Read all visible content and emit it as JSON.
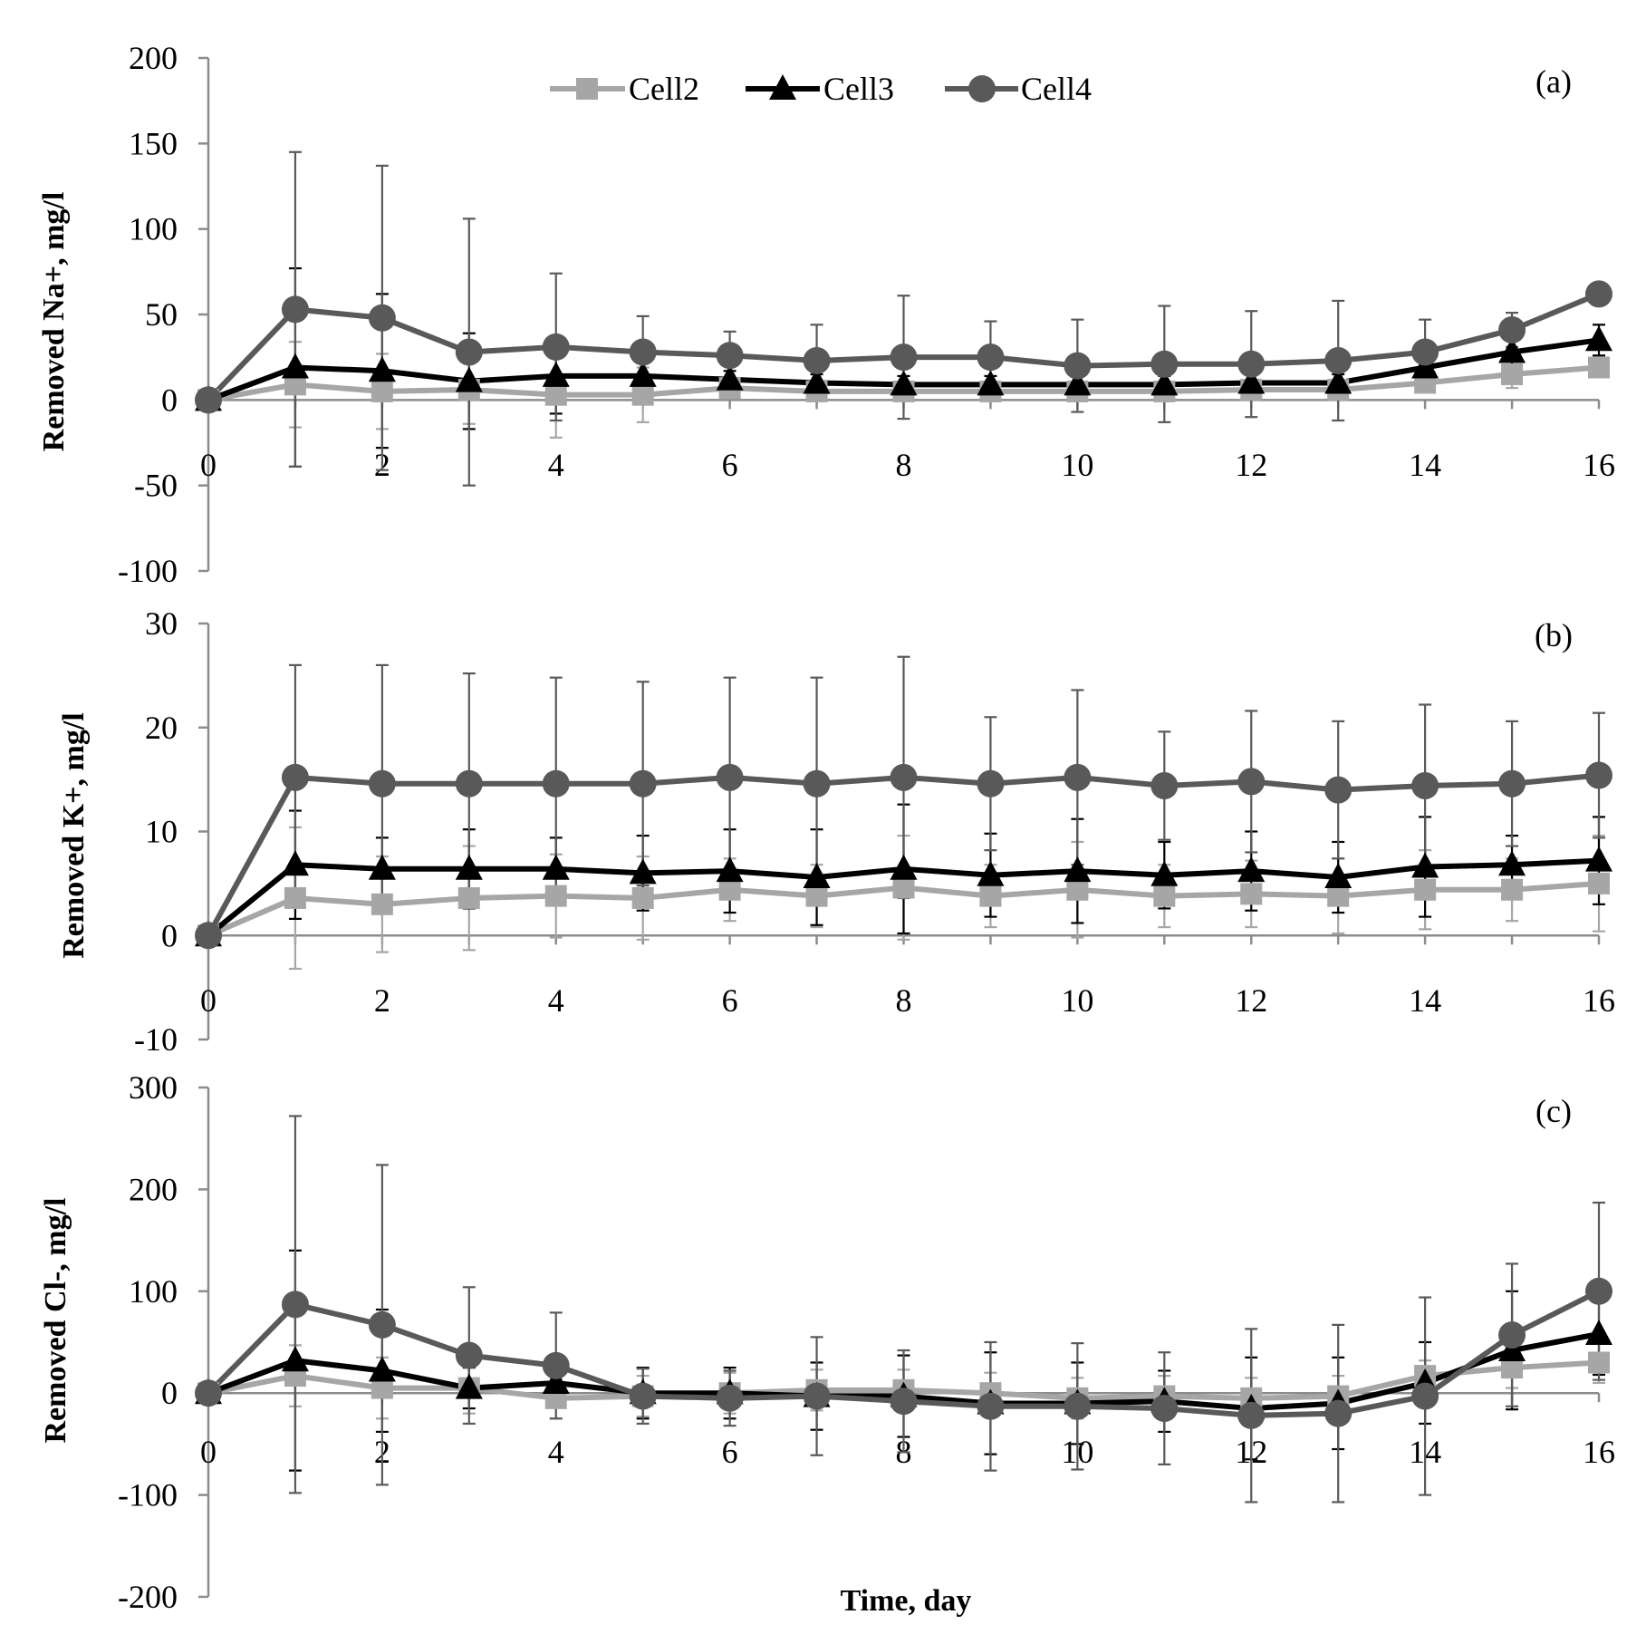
{
  "chart_data": [
    {
      "type": "line",
      "panel_label": "(a)",
      "ylabel": "Removed Na+, mg/l",
      "ylim": [
        -100,
        200
      ],
      "yticks": [
        "-100",
        "-50",
        "0",
        "50",
        "100",
        "150",
        "200"
      ],
      "ytick_values": [
        -100,
        -50,
        0,
        50,
        100,
        150,
        200
      ],
      "x": [
        0,
        1,
        2,
        3,
        4,
        5,
        6,
        7,
        8,
        9,
        10,
        11,
        12,
        13,
        14,
        15,
        16
      ],
      "xlim": [
        0,
        16
      ],
      "xticks": [
        "0",
        "2",
        "4",
        "6",
        "8",
        "10",
        "12",
        "14",
        "16"
      ],
      "xtick_values": [
        0,
        2,
        4,
        6,
        8,
        10,
        12,
        14,
        16
      ],
      "series": [
        {
          "name": "Cell2",
          "color": "#a6a6a6",
          "marker": "square",
          "values": [
            0,
            9,
            5,
            6,
            3,
            3,
            7,
            5,
            5,
            5,
            5,
            5,
            6,
            6,
            10,
            15,
            19
          ],
          "errors": [
            0,
            25,
            22,
            20,
            25,
            16,
            5,
            5,
            5,
            5,
            5,
            5,
            5,
            5,
            5,
            8,
            5
          ]
        },
        {
          "name": "Cell3",
          "color": "#000000",
          "marker": "triangle",
          "values": [
            0,
            19,
            17,
            11,
            14,
            14,
            12,
            10,
            9,
            9,
            9,
            9,
            10,
            10,
            19,
            28,
            35
          ],
          "errors": [
            0,
            58,
            45,
            28,
            22,
            8,
            5,
            5,
            5,
            5,
            5,
            5,
            5,
            5,
            5,
            8,
            9
          ]
        },
        {
          "name": "Cell4",
          "color": "#595959",
          "marker": "circle",
          "values": [
            0,
            53,
            48,
            28,
            31,
            28,
            26,
            23,
            25,
            25,
            20,
            21,
            21,
            23,
            28,
            41,
            62
          ],
          "errors": [
            0,
            92,
            89,
            78,
            43,
            21,
            14,
            21,
            36,
            21,
            27,
            34,
            31,
            35,
            19,
            10,
            0
          ]
        }
      ]
    },
    {
      "type": "line",
      "panel_label": "(b)",
      "ylabel": "Removed K+, mg/l",
      "ylim": [
        -10,
        30
      ],
      "yticks": [
        "-10",
        "0",
        "10",
        "20",
        "30"
      ],
      "ytick_values": [
        -10,
        0,
        10,
        20,
        30
      ],
      "x": [
        0,
        1,
        2,
        3,
        4,
        5,
        6,
        7,
        8,
        9,
        10,
        11,
        12,
        13,
        14,
        15,
        16
      ],
      "xlim": [
        0,
        16
      ],
      "xticks": [
        "0",
        "2",
        "4",
        "6",
        "8",
        "10",
        "12",
        "14",
        "16"
      ],
      "xtick_values": [
        0,
        2,
        4,
        6,
        8,
        10,
        12,
        14,
        16
      ],
      "series": [
        {
          "name": "Cell2",
          "color": "#a6a6a6",
          "marker": "square",
          "values": [
            0,
            3.6,
            3.0,
            3.6,
            3.8,
            3.6,
            4.4,
            3.8,
            4.6,
            3.8,
            4.4,
            3.8,
            4.0,
            3.8,
            4.4,
            4.4,
            5.0
          ],
          "errors": [
            0,
            6.8,
            4.6,
            5.0,
            4.0,
            4.0,
            3.0,
            3.0,
            5.0,
            3.0,
            4.6,
            3.0,
            3.2,
            3.6,
            3.8,
            3.0,
            4.6
          ]
        },
        {
          "name": "Cell3",
          "color": "#000000",
          "marker": "triangle",
          "values": [
            0,
            6.8,
            6.4,
            6.4,
            6.4,
            6.0,
            6.2,
            5.6,
            6.4,
            5.8,
            6.2,
            5.8,
            6.2,
            5.6,
            6.6,
            6.8,
            7.2
          ],
          "errors": [
            0,
            5.2,
            3.0,
            3.8,
            3.0,
            3.6,
            4.0,
            4.6,
            6.2,
            4.0,
            5.0,
            3.2,
            3.8,
            3.4,
            4.8,
            2.8,
            4.2
          ]
        },
        {
          "name": "Cell4",
          "color": "#595959",
          "marker": "circle",
          "values": [
            0,
            15.2,
            14.6,
            14.6,
            14.6,
            14.6,
            15.2,
            14.6,
            15.2,
            14.6,
            15.2,
            14.4,
            14.8,
            14.0,
            14.4,
            14.6,
            15.4
          ],
          "errors": [
            0,
            10.8,
            11.4,
            10.6,
            10.2,
            9.8,
            9.6,
            10.2,
            11.6,
            6.4,
            8.4,
            5.2,
            6.8,
            6.6,
            7.8,
            6.0,
            6.0
          ]
        }
      ]
    },
    {
      "type": "line",
      "panel_label": "(c)",
      "ylabel": "Removed Cl-, mg/l",
      "xlabel": "Time, day",
      "ylim": [
        -200,
        300
      ],
      "yticks": [
        "-200",
        "-100",
        "0",
        "100",
        "200",
        "300"
      ],
      "ytick_values": [
        -200,
        -100,
        0,
        100,
        200,
        300
      ],
      "x": [
        0,
        1,
        2,
        3,
        4,
        5,
        6,
        7,
        8,
        9,
        10,
        11,
        12,
        13,
        14,
        15,
        16
      ],
      "xlim": [
        0,
        16
      ],
      "xticks": [
        "0",
        "2",
        "4",
        "6",
        "8",
        "10",
        "12",
        "14",
        "16"
      ],
      "xtick_values": [
        0,
        2,
        4,
        6,
        8,
        10,
        12,
        14,
        16
      ],
      "series": [
        {
          "name": "Cell2",
          "color": "#a6a6a6",
          "marker": "square",
          "values": [
            0,
            17,
            5,
            5,
            -5,
            -3,
            0,
            3,
            3,
            0,
            -5,
            -3,
            -5,
            -3,
            17,
            25,
            30
          ],
          "errors": [
            0,
            30,
            30,
            25,
            20,
            20,
            20,
            20,
            20,
            20,
            20,
            20,
            20,
            20,
            15,
            20,
            20
          ]
        },
        {
          "name": "Cell3",
          "color": "#000000",
          "marker": "triangle",
          "values": [
            0,
            32,
            22,
            5,
            10,
            0,
            0,
            -3,
            -3,
            -10,
            -10,
            -8,
            -15,
            -10,
            10,
            42,
            58
          ],
          "errors": [
            0,
            108,
            60,
            20,
            15,
            25,
            25,
            33,
            40,
            50,
            40,
            30,
            50,
            45,
            40,
            58,
            40
          ]
        },
        {
          "name": "Cell4",
          "color": "#595959",
          "marker": "circle",
          "values": [
            0,
            87,
            67,
            37,
            27,
            -3,
            -5,
            -3,
            -8,
            -13,
            -13,
            -15,
            -22,
            -20,
            -3,
            57,
            100
          ],
          "errors": [
            0,
            185,
            157,
            67,
            52,
            27,
            27,
            58,
            50,
            63,
            62,
            55,
            85,
            87,
            97,
            70,
            87
          ]
        }
      ]
    }
  ],
  "legend": [
    {
      "label": "Cell2",
      "color": "#a6a6a6",
      "marker": "square"
    },
    {
      "label": "Cell3",
      "color": "#000000",
      "marker": "triangle"
    },
    {
      "label": "Cell4",
      "color": "#595959",
      "marker": "circle"
    }
  ]
}
